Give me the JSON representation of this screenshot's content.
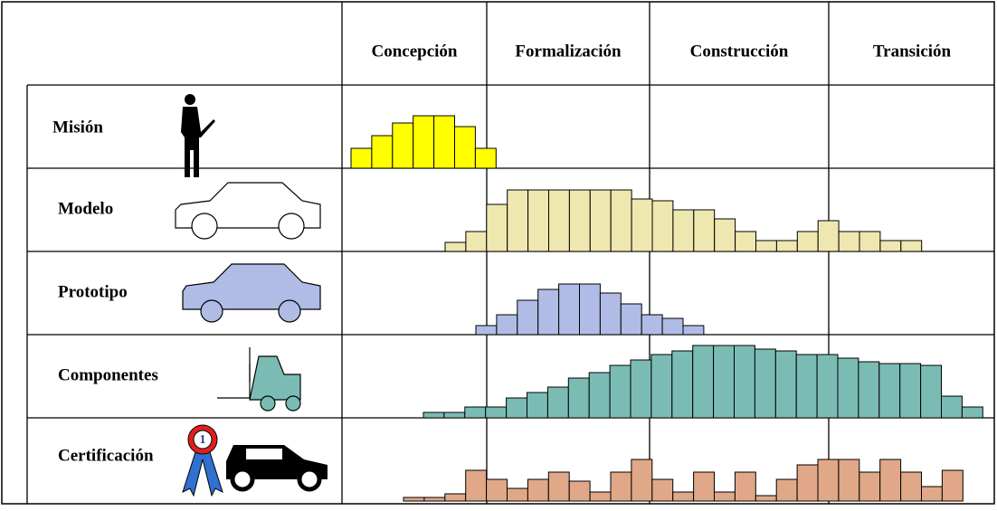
{
  "header": {
    "phases": [
      "Concepción",
      "Formalización",
      "Construcción",
      "Transición"
    ]
  },
  "badge": "1",
  "rows": [
    {
      "label": "Misión",
      "color": "#ffff00",
      "bars": [
        22,
        36,
        50,
        58,
        58,
        46,
        22
      ]
    },
    {
      "label": "Modelo",
      "color": "#eee8b0",
      "bars": [
        10,
        22,
        52,
        68,
        68,
        68,
        68,
        68,
        68,
        58,
        56,
        46,
        46,
        36,
        22,
        12,
        12,
        22,
        34,
        22,
        22,
        12,
        12
      ]
    },
    {
      "label": "Prototipo",
      "color": "#b0bce6",
      "bars": [
        10,
        22,
        38,
        50,
        56,
        56,
        46,
        34,
        22,
        18,
        10
      ]
    },
    {
      "label": "Componentes",
      "color": "#7abcb4",
      "bars": [
        6,
        6,
        12,
        12,
        22,
        28,
        34,
        44,
        50,
        58,
        64,
        70,
        74,
        80,
        80,
        80,
        76,
        74,
        70,
        70,
        66,
        62,
        60,
        60,
        58,
        24,
        12
      ]
    },
    {
      "label": "Certificación",
      "color": "#e0a888",
      "bars": [
        4,
        4,
        8,
        34,
        24,
        14,
        24,
        32,
        22,
        10,
        32,
        46,
        24,
        10,
        32,
        10,
        32,
        6,
        24,
        40,
        46,
        46,
        32,
        46,
        32,
        16,
        34
      ]
    }
  ]
}
